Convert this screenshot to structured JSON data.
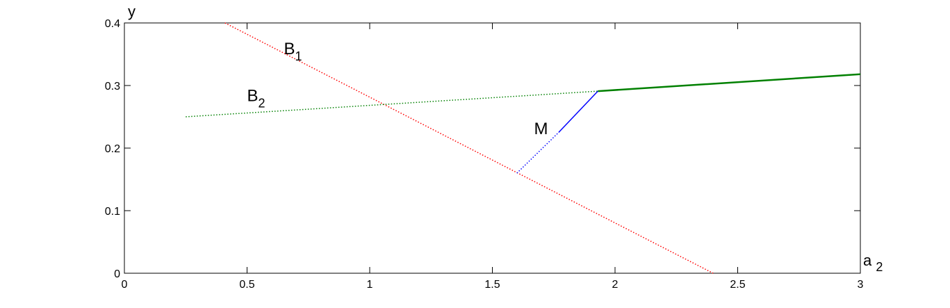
{
  "chart_data": {
    "type": "line",
    "title": "",
    "xlabel": "a",
    "xlabel_sub": "2",
    "ylabel": "y",
    "xlim": [
      0,
      3
    ],
    "ylim": [
      0,
      0.4
    ],
    "xticks": [
      0,
      0.5,
      1,
      1.5,
      2,
      2.5,
      3
    ],
    "xtick_labels": [
      "0",
      "0.5",
      "1",
      "1.5",
      "2",
      "2.5",
      "3"
    ],
    "yticks": [
      0,
      0.1,
      0.2,
      0.3,
      0.4
    ],
    "ytick_labels": [
      "0",
      "0.1",
      "0.2",
      "0.3",
      "0.4"
    ],
    "grid": false,
    "colors": {
      "B1": "#ff0000",
      "B2": "#008000",
      "M": "#0000ff"
    },
    "series": [
      {
        "name": "B1",
        "label_main": "B",
        "label_sub": "1",
        "color": "#ff0000",
        "style": "dotted",
        "x": [
          0.41,
          2.4
        ],
        "y": [
          0.4,
          0.0
        ]
      },
      {
        "name": "B2",
        "label_main": "B",
        "label_sub": "2",
        "color": "#008000",
        "style": "dotted",
        "x": [
          0.25,
          1.93
        ],
        "y": [
          0.25,
          0.291
        ]
      },
      {
        "name": "B2-solid",
        "color": "#008000",
        "style": "solid-thick",
        "x": [
          1.93,
          3.0
        ],
        "y": [
          0.291,
          0.318
        ]
      },
      {
        "name": "M",
        "label_main": "M",
        "color": "#0000ff",
        "style": "dotted",
        "x": [
          1.6,
          1.77
        ],
        "y": [
          0.16,
          0.225
        ]
      },
      {
        "name": "M-solid",
        "color": "#0000ff",
        "style": "solid",
        "x": [
          1.77,
          1.93
        ],
        "y": [
          0.225,
          0.291
        ]
      }
    ],
    "annotations": [
      {
        "series": "B1",
        "text": "B",
        "sub": "1",
        "x": 0.65,
        "y": 0.35
      },
      {
        "series": "B2",
        "text": "B",
        "sub": "2",
        "x": 0.5,
        "y": 0.275
      },
      {
        "series": "M",
        "text": "M",
        "x": 1.67,
        "y": 0.222
      }
    ]
  }
}
